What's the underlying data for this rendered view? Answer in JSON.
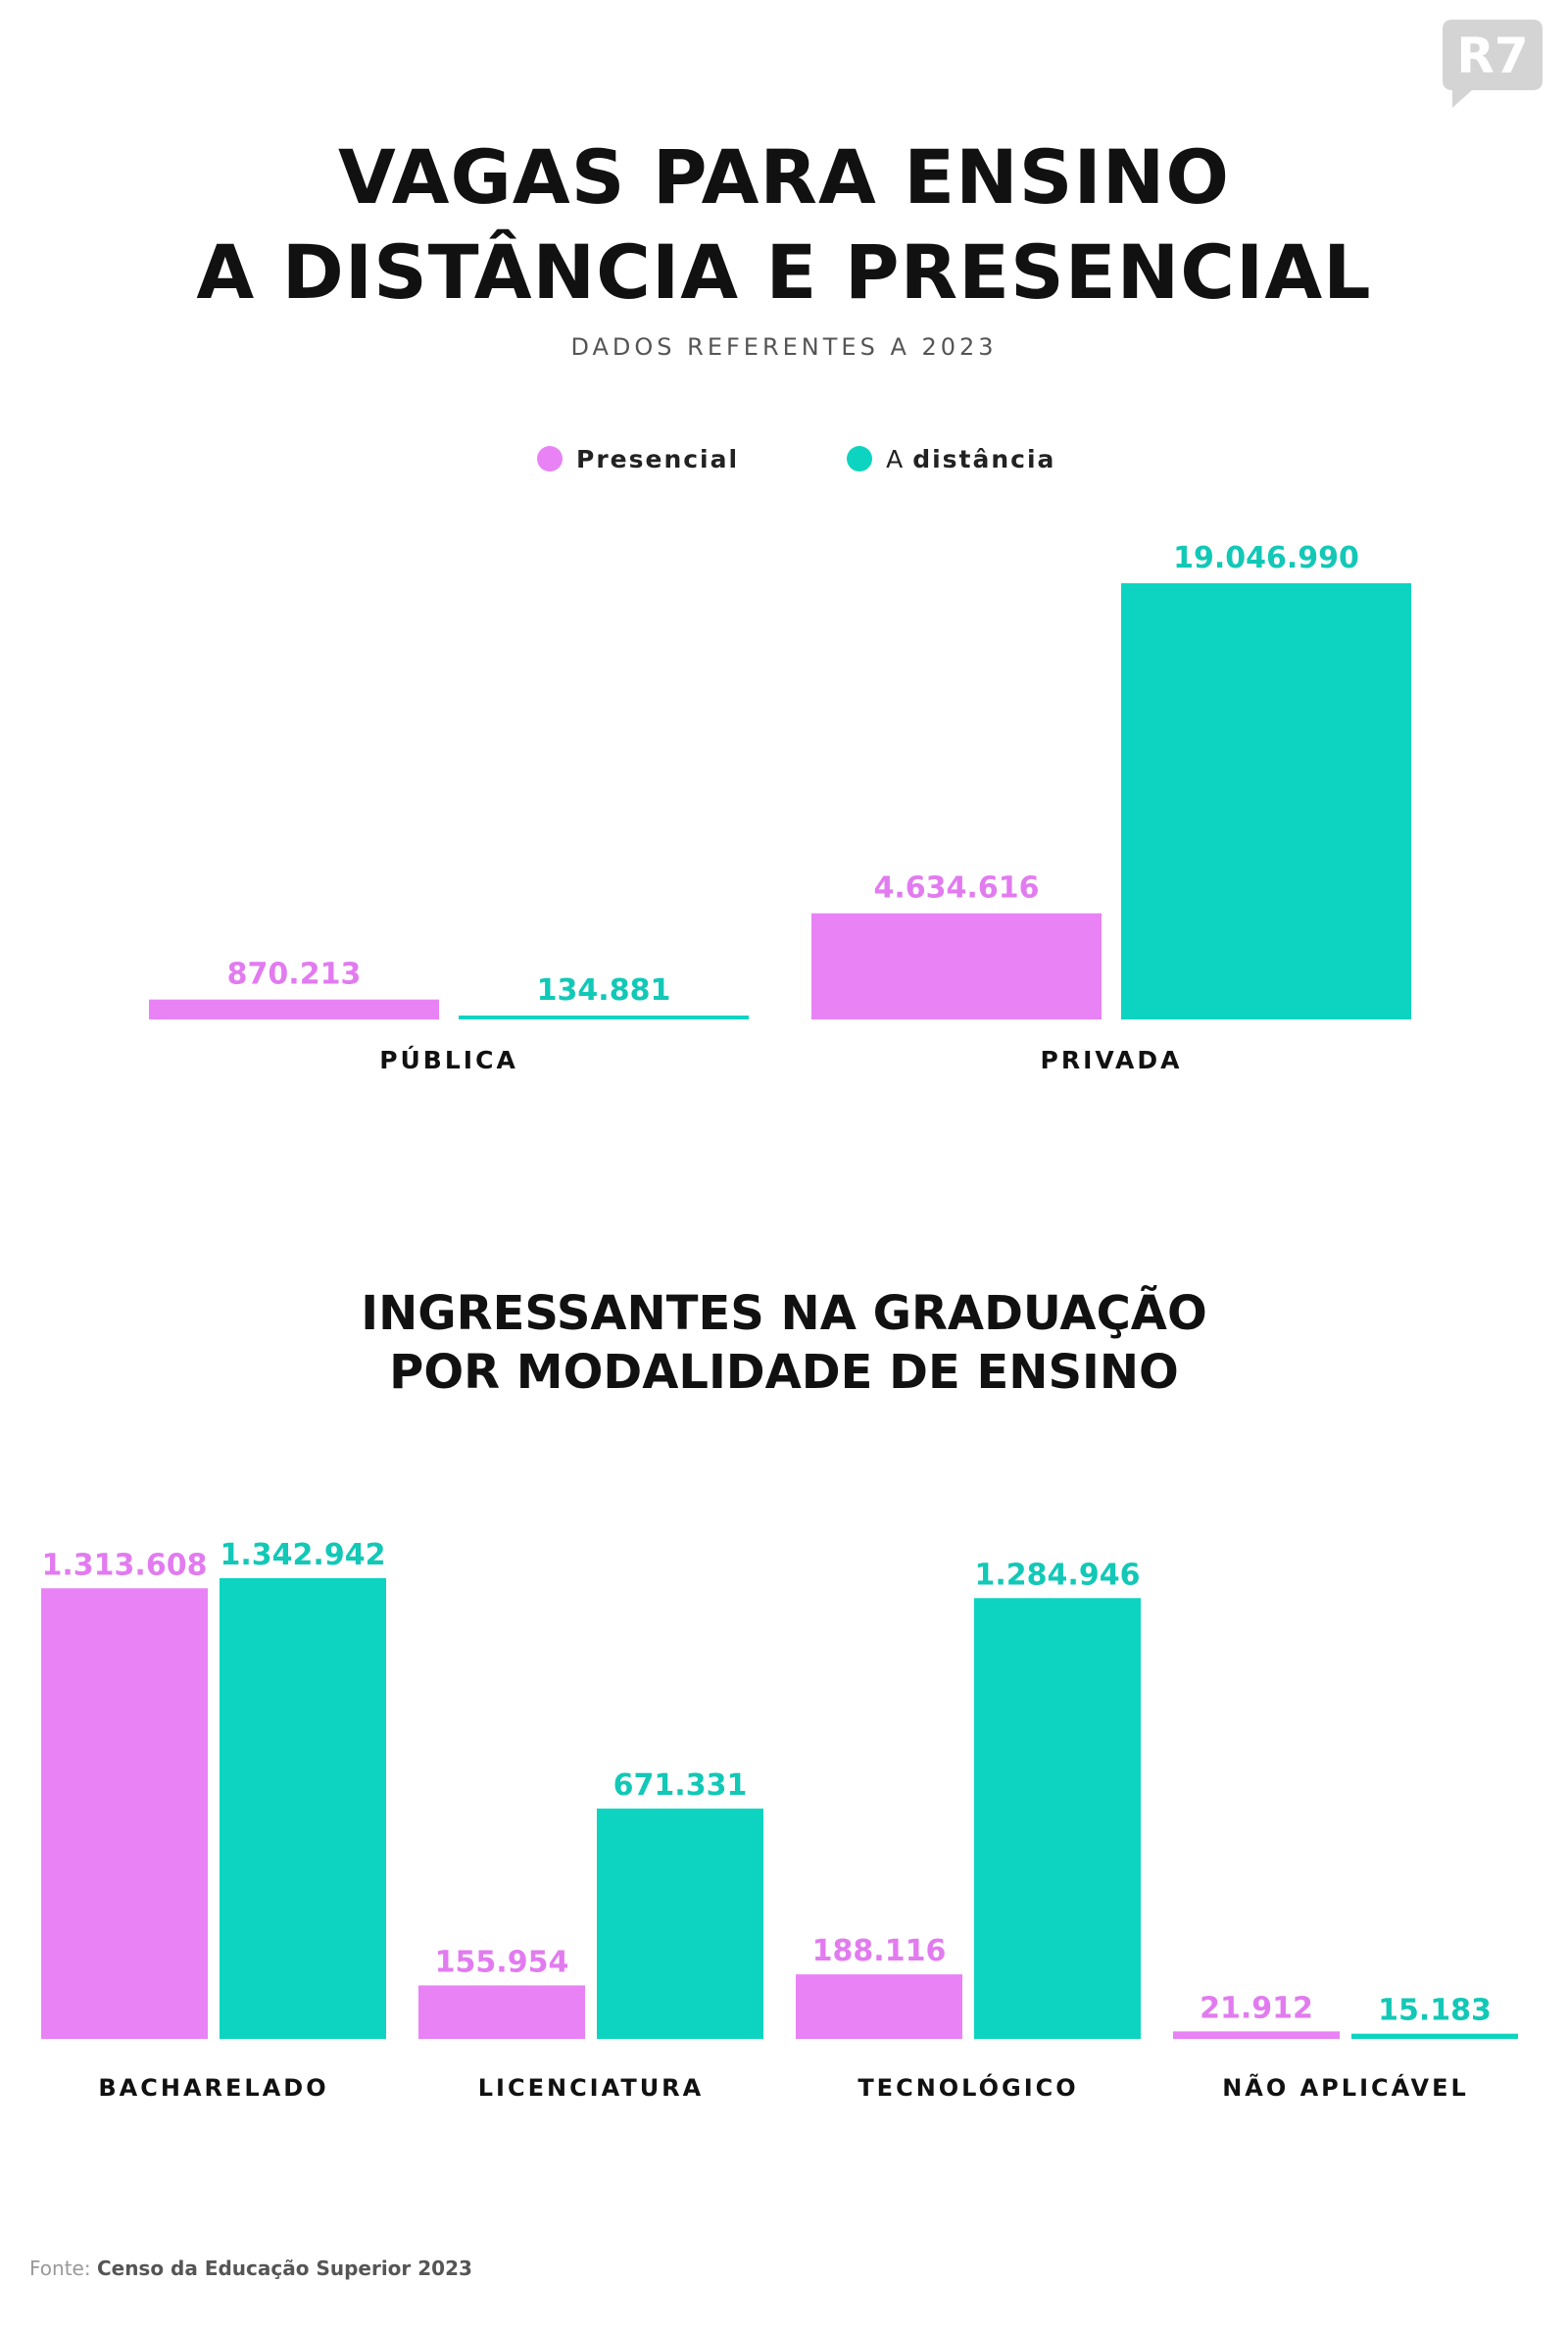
{
  "logo": {
    "text": "R7"
  },
  "header": {
    "title_line1_a": "VAGAS PARA ",
    "title_line1_b": "ENSINO",
    "title_line2": "A DISTÂNCIA E PRESENCIAL",
    "subtitle": "DADOS REFERENTES A 2023"
  },
  "legend": {
    "presencial": "Presencial",
    "distancia_prefix": "A",
    "distancia": "distância"
  },
  "colors": {
    "presencial": "#E882F5",
    "distancia": "#0DD4C0",
    "label_presencial": "#E27BF0",
    "label_distancia": "#12C8B6"
  },
  "chart2_title": {
    "line1": "INGRESSANTES NA GRADUAÇÃO",
    "line2": "POR MODALIDADE DE ENSINO"
  },
  "chart_data": [
    {
      "type": "bar",
      "title": "VAGAS PARA ENSINO A DISTÂNCIA E PRESENCIAL",
      "subtitle": "DADOS REFERENTES A 2023",
      "categories": [
        "PÚBLICA",
        "PRIVADA"
      ],
      "series": [
        {
          "name": "Presencial",
          "values": [
            870213,
            4634616
          ],
          "labels": [
            "870.213",
            "4.634.616"
          ]
        },
        {
          "name": "A distância",
          "values": [
            134881,
            19046990
          ],
          "labels": [
            "134.881",
            "19.046.990"
          ]
        }
      ],
      "ylim": [
        0,
        19046990
      ],
      "grid": false,
      "legend": "top-center"
    },
    {
      "type": "bar",
      "title": "INGRESSANTES NA GRADUAÇÃO POR MODALIDADE DE ENSINO",
      "categories": [
        "BACHARELADO",
        "LICENCIATURA",
        "TECNOLÓGICO",
        "NÃO APLICÁVEL"
      ],
      "series": [
        {
          "name": "Presencial",
          "values": [
            1313608,
            155954,
            188116,
            21912
          ],
          "labels": [
            "1.313.608",
            "155.954",
            "188.116",
            "21.912"
          ]
        },
        {
          "name": "A distância",
          "values": [
            1342942,
            671331,
            1284946,
            15183
          ],
          "labels": [
            "1.342.942",
            "671.331",
            "1.284.946",
            "15.183"
          ]
        }
      ],
      "ylim": [
        0,
        1342942
      ],
      "grid": false
    }
  ],
  "footer": {
    "prefix": "Fonte: ",
    "source": "Censo da Educação Superior 2023"
  }
}
